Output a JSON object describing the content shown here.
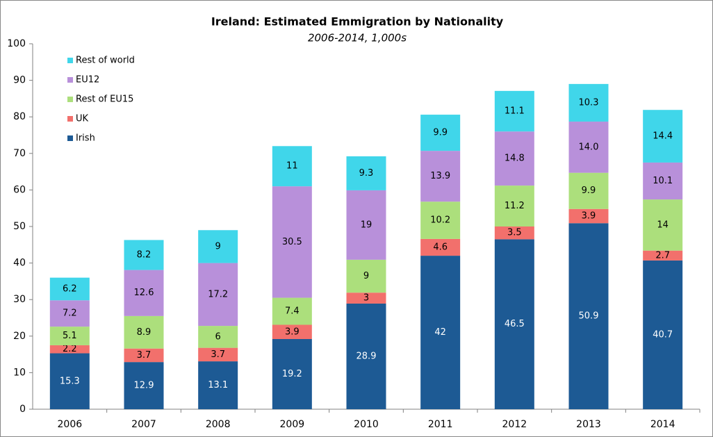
{
  "chart_data": {
    "type": "stacked_bar",
    "title": "Ireland: Estimated Emmigration by Nationality",
    "subtitle": "2006-2014, 1,000s",
    "categories": [
      "2006",
      "2007",
      "2008",
      "2009",
      "2010",
      "2011",
      "2012",
      "2013",
      "2014"
    ],
    "series": [
      {
        "name": "Irish",
        "color": "#1d5a94",
        "values": [
          15.3,
          12.9,
          13.1,
          19.2,
          28.9,
          42,
          46.5,
          50.9,
          40.7
        ]
      },
      {
        "name": "UK",
        "color": "#f2706c",
        "values": [
          2.2,
          3.7,
          3.7,
          3.9,
          3,
          4.6,
          3.5,
          3.9,
          2.7
        ]
      },
      {
        "name": "Rest of EU15",
        "color": "#acdf7c",
        "values": [
          5.1,
          8.9,
          6,
          7.4,
          9,
          10.2,
          11.2,
          9.9,
          14
        ]
      },
      {
        "name": "EU12",
        "color": "#b890da",
        "values": [
          7.2,
          12.6,
          17.2,
          30.5,
          19,
          13.9,
          14.8,
          14.0,
          10.1
        ],
        "value_labels": [
          "7.2",
          "12.6",
          "17.2",
          "30.5",
          "19",
          "13.9",
          "14.8",
          "14.0",
          "10.1"
        ]
      },
      {
        "name": "Rest of world",
        "color": "#40d6ea",
        "values": [
          6.2,
          8.2,
          9,
          11,
          9.3,
          9.9,
          11.1,
          10.3,
          14.4
        ]
      }
    ],
    "ylim": [
      0,
      100
    ],
    "yticks": [
      0,
      10,
      20,
      30,
      40,
      50,
      60,
      70,
      80,
      90,
      100
    ],
    "grid": false,
    "legend": "top-left"
  }
}
